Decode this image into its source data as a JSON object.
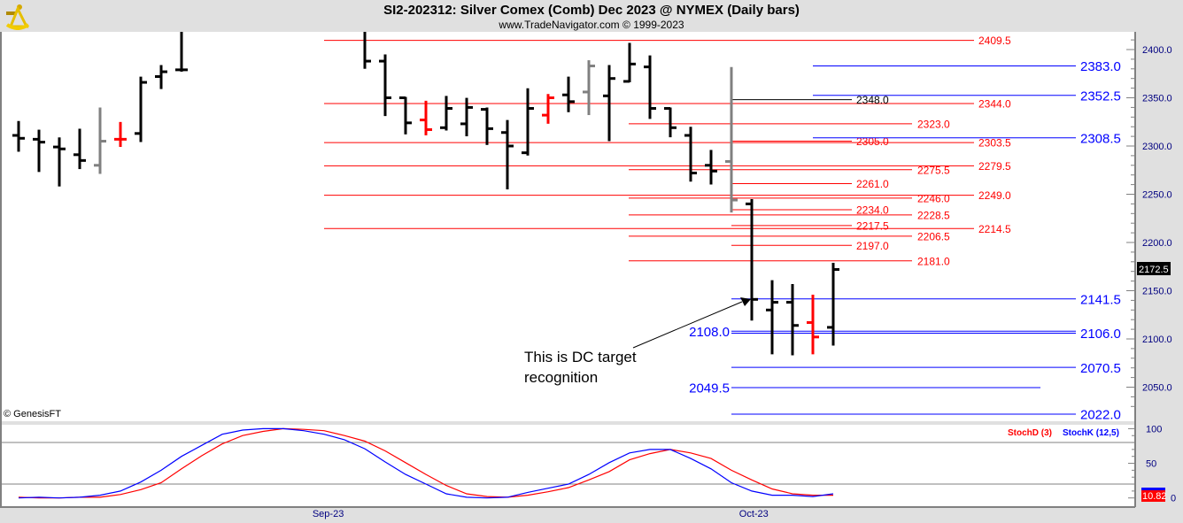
{
  "header": {
    "title": "SI2-202312:  Silver Comex (Comb) Dec 2023 @ NYMEX  (Daily bars)",
    "subtitle": "www.TradeNavigator.com © 1999-2023",
    "logo": "sextant-icon"
  },
  "copyright": "© GenesisFT",
  "annotation": {
    "line1": "This is DC target recognition",
    "line2_split": [
      "This is DC target",
      "recognition"
    ]
  },
  "last_price_label": "2172.5",
  "stoch_readout": "10.82",
  "colors": {
    "up": "#000000",
    "red": "#ff0000",
    "gray": "#808080",
    "blue": "#0000ff",
    "stochK": "#0000ff",
    "stochD": "#ff0000"
  },
  "chart_data": {
    "type": "ohlc-bar",
    "title": "SI2-202312: Silver Comex (Comb) Dec 2023 @ NYMEX (Daily bars)",
    "price_axis": {
      "range": [
        2010,
        2418
      ],
      "ticks": [
        "2400.0",
        "2350.0",
        "2300.0",
        "2250.0",
        "2200.0",
        "2150.0",
        "2100.0",
        "2050.0"
      ],
      "tick_values": [
        2400,
        2350,
        2300,
        2250,
        2200,
        2150,
        2100,
        2050
      ]
    },
    "x_labels": [
      {
        "label": "Sep-23",
        "bar": 15.2
      },
      {
        "label": "Oct-23",
        "bar": 36.1
      }
    ],
    "bars": [
      {
        "o": 2311,
        "h": 2325,
        "l": 2295,
        "c": 2308,
        "color": "black"
      },
      {
        "o": 2307,
        "h": 2316,
        "l": 2274,
        "c": 2304,
        "color": "black"
      },
      {
        "o": 2299,
        "h": 2308,
        "l": 2259,
        "c": 2297,
        "color": "black"
      },
      {
        "o": 2291,
        "h": 2317,
        "l": 2277,
        "c": 2285,
        "color": "black"
      },
      {
        "o": 2280,
        "h": 2339,
        "l": 2272,
        "c": 2305,
        "color": "gray"
      },
      {
        "o": 2307,
        "h": 2324,
        "l": 2300,
        "c": 2307,
        "color": "red"
      },
      {
        "o": 2313,
        "h": 2371,
        "l": 2305,
        "c": 2366,
        "color": "black"
      },
      {
        "o": 2372,
        "h": 2383,
        "l": 2360,
        "c": 2377,
        "color": "black"
      },
      {
        "o": 2379,
        "h": 2425,
        "l": 2378,
        "c": 2379,
        "color": "black"
      },
      null,
      null,
      null,
      null,
      null,
      null,
      null,
      null,
      {
        "o": null,
        "h": 2425,
        "l": 2381,
        "c": 2388,
        "color": "black"
      },
      {
        "o": 2388,
        "h": 2394,
        "l": 2332,
        "c": 2350,
        "color": "black"
      },
      {
        "o": 2350,
        "h": 2350,
        "l": 2313,
        "c": 2324,
        "color": "black"
      },
      {
        "o": 2327,
        "h": 2346,
        "l": 2312,
        "c": 2317,
        "color": "red"
      },
      {
        "o": 2319,
        "h": 2351,
        "l": 2317,
        "c": 2339,
        "color": "black"
      },
      {
        "o": 2323,
        "h": 2349,
        "l": 2311,
        "c": 2340,
        "color": "black"
      },
      {
        "o": 2338,
        "h": 2339,
        "l": 2302,
        "c": 2318,
        "color": "black"
      },
      {
        "o": 2314,
        "h": 2326,
        "l": 2256,
        "c": 2300,
        "color": "black"
      },
      {
        "o": 2293,
        "h": 2359,
        "l": 2291,
        "c": 2339,
        "color": "black"
      },
      {
        "o": 2332,
        "h": 2353,
        "l": 2324,
        "c": 2350,
        "color": "red"
      },
      {
        "o": 2353,
        "h": 2371,
        "l": 2336,
        "c": 2346,
        "color": "black"
      },
      {
        "o": 2356,
        "h": 2388,
        "l": 2333,
        "c": 2383,
        "color": "gray"
      },
      {
        "o": 2352,
        "h": 2383,
        "l": 2306,
        "c": 2370,
        "color": "black"
      },
      {
        "o": 2367,
        "h": 2406,
        "l": 2367,
        "c": 2385,
        "color": "black"
      },
      {
        "o": 2382,
        "h": 2393,
        "l": 2329,
        "c": 2339,
        "color": "black"
      },
      {
        "o": 2339,
        "h": 2339,
        "l": 2310,
        "c": 2319,
        "color": "black"
      },
      {
        "o": 2311,
        "h": 2319,
        "l": 2264,
        "c": 2272,
        "color": "black"
      },
      {
        "o": 2280,
        "h": 2295,
        "l": 2261,
        "c": 2274,
        "color": "black"
      },
      {
        "o": 2284,
        "h": 2381,
        "l": 2232,
        "c": 2244,
        "color": "gray"
      },
      {
        "o": 2240,
        "h": 2244,
        "l": 2120,
        "c": 2141,
        "color": "black"
      },
      {
        "o": 2130,
        "h": 2160,
        "l": 2085,
        "c": 2138,
        "color": "black"
      },
      {
        "o": 2138,
        "h": 2156,
        "l": 2084,
        "c": 2114,
        "color": "black"
      },
      {
        "o": 2117,
        "h": 2145,
        "l": 2085,
        "c": 2102,
        "color": "red"
      },
      {
        "o": 2112,
        "h": 2178,
        "l": 2094,
        "c": 2172,
        "color": "black"
      }
    ],
    "levels": [
      {
        "price": 2409.5,
        "label": "2409.5",
        "color": "red",
        "group": "A"
      },
      {
        "price": 2344.0,
        "label": "2344.0",
        "color": "red",
        "group": "A"
      },
      {
        "price": 2303.5,
        "label": "2303.5",
        "color": "red",
        "group": "A"
      },
      {
        "price": 2279.5,
        "label": "2279.5",
        "color": "red",
        "group": "A"
      },
      {
        "price": 2249.0,
        "label": "2249.0",
        "color": "red",
        "group": "A"
      },
      {
        "price": 2214.5,
        "label": "2214.5",
        "color": "red",
        "group": "A"
      },
      {
        "price": 2323.0,
        "label": "2323.0",
        "color": "red",
        "group": "B"
      },
      {
        "price": 2275.5,
        "label": "2275.5",
        "color": "red",
        "group": "B"
      },
      {
        "price": 2246.0,
        "label": "2246.0",
        "color": "red",
        "group": "B"
      },
      {
        "price": 2228.5,
        "label": "2228.5",
        "color": "red",
        "group": "B"
      },
      {
        "price": 2206.5,
        "label": "2206.5",
        "color": "red",
        "group": "B"
      },
      {
        "price": 2181.0,
        "label": "2181.0",
        "color": "red",
        "group": "B"
      },
      {
        "price": 2348.0,
        "label": "2348.0",
        "color": "black",
        "group": "C"
      },
      {
        "price": 2305.0,
        "label": "2305.0",
        "color": "red",
        "group": "C"
      },
      {
        "price": 2261.0,
        "label": "2261.0",
        "color": "red",
        "group": "C"
      },
      {
        "price": 2234.0,
        "label": "2234.0",
        "color": "red",
        "group": "C"
      },
      {
        "price": 2217.5,
        "label": "2217.5",
        "color": "red",
        "group": "C"
      },
      {
        "price": 2197.0,
        "label": "2197.0",
        "color": "red",
        "group": "C"
      },
      {
        "price": 2383.0,
        "label": "2383.0",
        "color": "blue",
        "group": "D"
      },
      {
        "price": 2352.5,
        "label": "2352.5",
        "color": "blue",
        "group": "D"
      },
      {
        "price": 2308.5,
        "label": "2308.5",
        "color": "blue",
        "group": "D"
      },
      {
        "price": 2141.5,
        "label": "2141.5",
        "color": "blue",
        "group": "E"
      },
      {
        "price": 2106.0,
        "label": "2106.0",
        "color": "blue",
        "group": "E"
      },
      {
        "price": 2070.5,
        "label": "2070.5",
        "color": "blue",
        "group": "E"
      },
      {
        "price": 2022.0,
        "label": "2022.0",
        "color": "blue",
        "group": "E"
      },
      {
        "price": 2108.0,
        "label": "2108.0",
        "color": "blue",
        "group": "F"
      },
      {
        "price": 2049.5,
        "label": "2049.5",
        "color": "blue",
        "group": "F"
      }
    ],
    "stochastic": {
      "legend": [
        {
          "name": "StochD (3)",
          "color": "red"
        },
        {
          "name": "StochK (12,5)",
          "color": "blue"
        }
      ],
      "range": [
        0,
        100
      ],
      "ticks": [
        "100",
        "50",
        "0"
      ],
      "tick_values": [
        100,
        50,
        0
      ],
      "gridlines": [
        80,
        20
      ],
      "K": [
        0,
        1,
        0,
        1,
        4,
        10,
        23,
        40,
        60,
        76,
        92,
        98,
        100,
        100,
        97,
        92,
        84,
        71,
        52,
        34,
        20,
        6,
        1,
        0,
        1,
        8,
        14,
        20,
        34,
        51,
        65,
        70,
        70,
        57,
        42,
        22,
        10,
        4,
        4,
        2,
        6
      ],
      "D": [
        1,
        0,
        0,
        1,
        1,
        5,
        12,
        22,
        42,
        61,
        78,
        90,
        96,
        100,
        99,
        97,
        90,
        82,
        68,
        51,
        34,
        18,
        6,
        2,
        1,
        4,
        9,
        15,
        26,
        38,
        55,
        64,
        70,
        65,
        57,
        40,
        26,
        13,
        6,
        4,
        4
      ]
    }
  }
}
